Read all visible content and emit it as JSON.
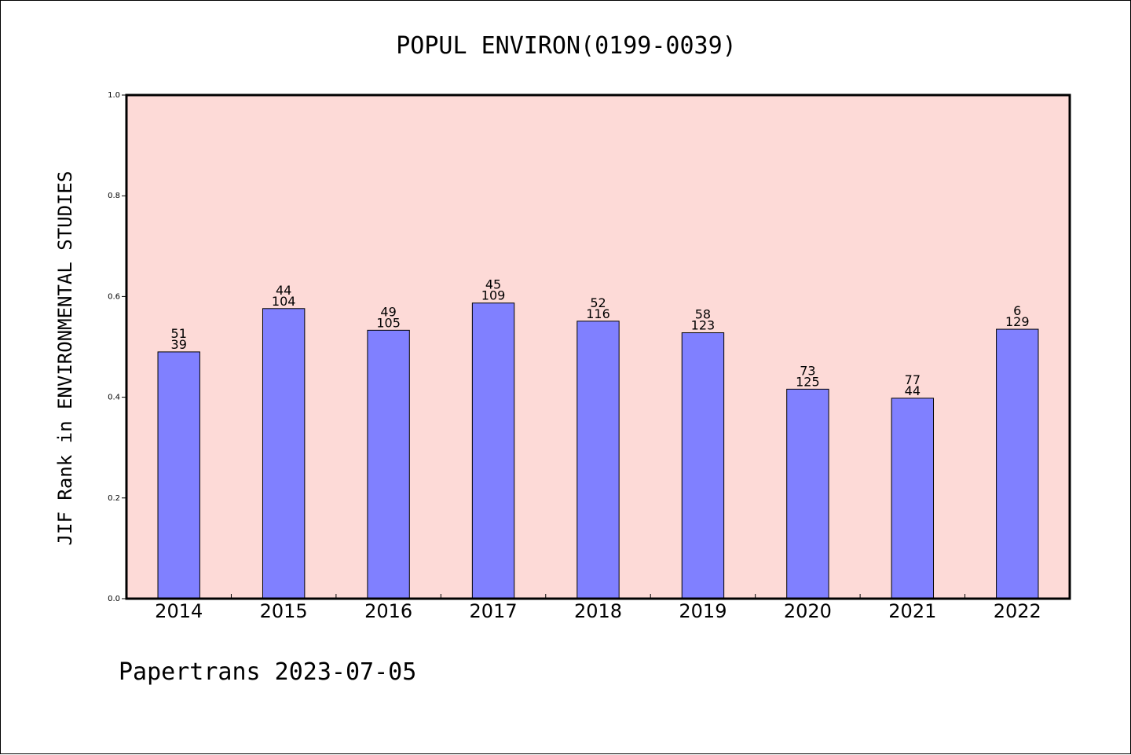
{
  "chart_data": {
    "type": "bar",
    "title": "POPUL ENVIRON(0199-0039)",
    "xlabel": "",
    "ylabel": "JIF Rank in ENVIRONMENTAL STUDIES",
    "ylim": [
      0.0,
      1.0
    ],
    "yticks": [
      "0.0",
      "0.2",
      "0.4",
      "0.6",
      "0.8",
      "1.0"
    ],
    "categories": [
      "2014",
      "2015",
      "2016",
      "2017",
      "2018",
      "2019",
      "2020",
      "2021",
      "2022"
    ],
    "values": [
      0.49,
      0.576,
      0.533,
      0.587,
      0.551,
      0.528,
      0.416,
      0.398,
      0.535
    ],
    "labels_top": [
      "51",
      "44",
      "49",
      "45",
      "52",
      "58",
      "73",
      "77",
      "6"
    ],
    "labels_bottom": [
      "39",
      "104",
      "105",
      "109",
      "116",
      "123",
      "125",
      "44",
      "129"
    ],
    "colors": {
      "plot_background": "#fddad7",
      "bar": "#8080ff"
    },
    "grid": false,
    "legend": "none"
  },
  "footer": "Papertrans 2023-07-05"
}
